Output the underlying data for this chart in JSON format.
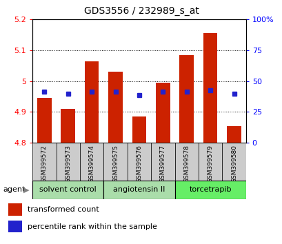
{
  "title": "GDS3556 / 232989_s_at",
  "samples": [
    "GSM399572",
    "GSM399573",
    "GSM399574",
    "GSM399575",
    "GSM399576",
    "GSM399577",
    "GSM399578",
    "GSM399579",
    "GSM399580"
  ],
  "transformed_count": [
    4.945,
    4.91,
    5.065,
    5.03,
    4.885,
    4.995,
    5.085,
    5.155,
    4.855
  ],
  "percentile_rank_y": [
    4.965,
    4.96,
    4.965,
    4.965,
    4.955,
    4.965,
    4.965,
    4.97,
    4.96
  ],
  "ylim_left": [
    4.8,
    5.2
  ],
  "ylim_right": [
    0,
    100
  ],
  "yticks_left": [
    4.8,
    4.9,
    5.0,
    5.1,
    5.2
  ],
  "yticks_right": [
    0,
    25,
    50,
    75,
    100
  ],
  "ytick_labels_left": [
    "4.8",
    "4.9",
    "5",
    "5.1",
    "5.2"
  ],
  "ytick_labels_right": [
    "0",
    "25",
    "50",
    "75",
    "100%"
  ],
  "bar_color": "#cc2200",
  "dot_color": "#2222cc",
  "label_bg_color": "#cccccc",
  "agent_groups": [
    {
      "label": "solvent control",
      "indices": [
        0,
        1,
        2
      ],
      "color": "#aaddaa"
    },
    {
      "label": "angiotensin II",
      "indices": [
        3,
        4,
        5
      ],
      "color": "#aaddaa"
    },
    {
      "label": "torcetrapib",
      "indices": [
        6,
        7,
        8
      ],
      "color": "#66ee66"
    }
  ],
  "legend_items": [
    {
      "label": "transformed count",
      "color": "#cc2200"
    },
    {
      "label": "percentile rank within the sample",
      "color": "#2222cc"
    }
  ],
  "bar_width": 0.6,
  "base_value": 4.8
}
